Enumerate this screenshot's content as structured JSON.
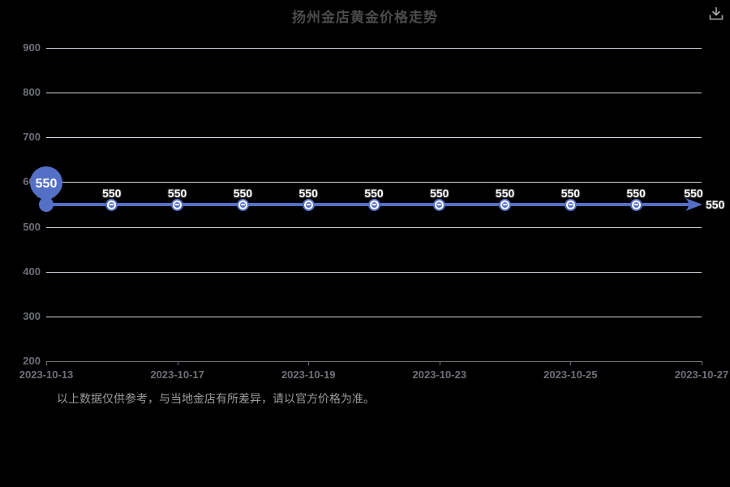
{
  "title": "扬州金店黄金价格走势",
  "header": {
    "download_icon": "download"
  },
  "footer": {
    "disclaimer": "以上数据仅供参考，与当地金店有所差异，请以官方价格为准。"
  },
  "colors": {
    "accent": "#5470C6",
    "background": "#000000",
    "grid": "#e0e6f1",
    "axis_label": "#6e7079",
    "title_text": "#4b4b4b",
    "disclaimer_text": "#9b9b9b",
    "point_label_text": "#ffffff"
  },
  "chart_data": {
    "type": "line",
    "title": "扬州金店黄金价格走势",
    "values": [
      550,
      550,
      550,
      550,
      550,
      550,
      550,
      550,
      550,
      550,
      550
    ],
    "point_labels": [
      "550",
      "550",
      "550",
      "550",
      "550",
      "550",
      "550",
      "550",
      "550",
      "550",
      "550"
    ],
    "x_tick_labels": [
      "2023-10-13",
      "2023-10-17",
      "2023-10-19",
      "2023-10-23",
      "2023-10-25",
      "2023-10-27"
    ],
    "x_tick_indices": [
      0,
      2,
      4,
      6,
      8,
      10
    ],
    "y_ticks": [
      900,
      800,
      700,
      600,
      500,
      400,
      300,
      200
    ],
    "ylim": [
      200,
      900
    ],
    "xlabel": "",
    "ylabel": "",
    "grid": true,
    "legend": false,
    "line_color": "#5470C6",
    "arrow_end": true,
    "marker_pin": {
      "index": 0,
      "label": "550"
    },
    "end_label": "550"
  }
}
